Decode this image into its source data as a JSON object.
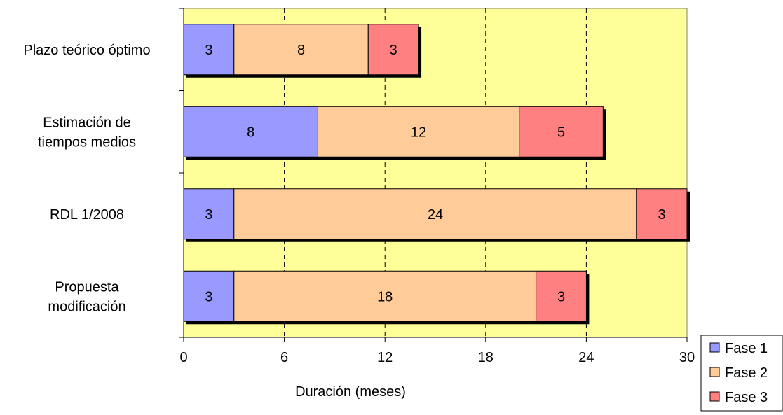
{
  "chart_data": {
    "type": "bar",
    "orientation": "horizontal",
    "stacked": true,
    "categories": [
      "Plazo teórico óptimo",
      "Estimación de tiempos medios",
      "RDL 1/2008",
      "Propuesta modificación"
    ],
    "category_lines": [
      [
        "Plazo teórico óptimo"
      ],
      [
        "Estimación de",
        "tiempos medios"
      ],
      [
        "RDL 1/2008"
      ],
      [
        "Propuesta",
        "modificación"
      ]
    ],
    "series": [
      {
        "name": "Fase 1",
        "values": [
          3,
          8,
          3,
          3
        ],
        "color": "#9999FF"
      },
      {
        "name": "Fase 2",
        "values": [
          8,
          12,
          24,
          18
        ],
        "color": "#FFCC99"
      },
      {
        "name": "Fase 3",
        "values": [
          3,
          5,
          3,
          3
        ],
        "color": "#FF8080"
      }
    ],
    "xlabel": "Duración (meses)",
    "xlim": [
      0,
      30
    ],
    "xticks": [
      0,
      6,
      12,
      18,
      24,
      30
    ],
    "grid": "vertical dashed",
    "legend_position": "bottom-right",
    "plot_background": "#FFFF99",
    "shadow_color": "#000000"
  }
}
